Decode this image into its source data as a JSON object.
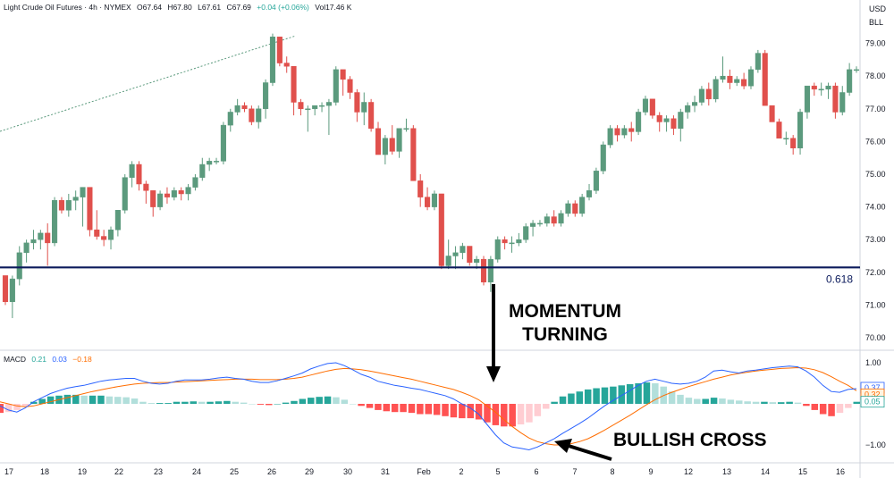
{
  "header": {
    "symbol": "Light Crude Oil Futures · 4h · NYMEX",
    "open": "O67.64",
    "high": "H67.80",
    "low": "L67.61",
    "close": "C67.69",
    "change": "+0.04 (+0.06%)",
    "volume": "Vol17.46 K"
  },
  "price_axis": {
    "currency": "USD",
    "unit": "BLL"
  },
  "macd_header": {
    "name": "MACD",
    "v1": "0.21",
    "v2": "0.03",
    "v3": "−0.18"
  },
  "annotations": {
    "momentum_line1": "MOMENTUM",
    "momentum_line2": "TURNING",
    "bullish": "BULLISH CROSS"
  },
  "fib_label": "0.618",
  "colors": {
    "up": "#26a69a",
    "up_candle": "#5b9a7d",
    "down_candle": "#e0504c",
    "macd_line": "#2962ff",
    "signal_line": "#ff6d00",
    "hist_up_strong": "#26a69a",
    "hist_up_weak": "#b2dfdb",
    "hist_down_strong": "#ff5252",
    "hist_down_weak": "#ffcdd2",
    "support_line": "#0c1b5c"
  },
  "chart_data": [
    {
      "type": "candlestick",
      "title": "",
      "y_ticks": [
        "79.00",
        "78.00",
        "77.00",
        "76.00",
        "75.00",
        "74.00",
        "73.00",
        "72.00",
        "71.00",
        "70.00"
      ],
      "x_ticks": [
        "17",
        "18",
        "19",
        "22",
        "23",
        "24",
        "25",
        "26",
        "29",
        "30",
        "31",
        "Feb",
        "2",
        "5",
        "6",
        "7",
        "8",
        "9",
        "12",
        "13",
        "14",
        "15",
        "16"
      ],
      "ylim": [
        69.6,
        79.6
      ],
      "horizontal_line": {
        "value": 72.15,
        "label": "0.618"
      },
      "candles": [
        [
          71.9,
          71.9,
          71.0,
          71.1
        ],
        [
          71.1,
          71.9,
          70.6,
          71.8
        ],
        [
          71.8,
          72.8,
          71.6,
          72.6
        ],
        [
          72.6,
          73.0,
          72.3,
          72.9
        ],
        [
          72.9,
          73.3,
          72.7,
          73.0
        ],
        [
          73.0,
          73.3,
          72.7,
          73.2
        ],
        [
          73.2,
          73.5,
          72.2,
          72.9
        ],
        [
          72.9,
          74.3,
          72.8,
          74.2
        ],
        [
          74.2,
          74.3,
          73.8,
          73.9
        ],
        [
          73.9,
          74.4,
          73.7,
          74.2
        ],
        [
          74.2,
          74.5,
          73.9,
          74.3
        ],
        [
          74.3,
          74.6,
          73.4,
          74.6
        ],
        [
          74.6,
          74.6,
          73.1,
          73.3
        ],
        [
          73.3,
          73.9,
          73.0,
          73.1
        ],
        [
          73.1,
          73.3,
          72.8,
          73.0
        ],
        [
          73.0,
          73.4,
          72.7,
          73.3
        ],
        [
          73.3,
          73.9,
          73.1,
          73.9
        ],
        [
          73.9,
          75.0,
          73.8,
          74.9
        ],
        [
          74.9,
          75.4,
          74.6,
          75.3
        ],
        [
          75.3,
          75.4,
          74.5,
          74.7
        ],
        [
          74.7,
          74.8,
          74.1,
          74.5
        ],
        [
          74.5,
          74.5,
          73.7,
          74.0
        ],
        [
          74.0,
          74.5,
          73.9,
          74.4
        ],
        [
          74.4,
          74.6,
          74.1,
          74.3
        ],
        [
          74.3,
          74.6,
          74.2,
          74.5
        ],
        [
          74.5,
          74.6,
          74.2,
          74.4
        ],
        [
          74.4,
          74.7,
          74.2,
          74.6
        ],
        [
          74.6,
          75.0,
          74.5,
          74.9
        ],
        [
          74.9,
          75.5,
          74.8,
          75.3
        ],
        [
          75.3,
          75.5,
          75.1,
          75.4
        ],
        [
          75.4,
          75.5,
          75.3,
          75.4
        ],
        [
          75.4,
          76.6,
          75.3,
          76.5
        ],
        [
          76.5,
          77.0,
          76.3,
          76.9
        ],
        [
          76.9,
          77.3,
          76.8,
          77.1
        ],
        [
          77.1,
          77.2,
          76.9,
          77.0
        ],
        [
          77.0,
          77.1,
          76.5,
          76.6
        ],
        [
          76.6,
          77.1,
          76.4,
          77.0
        ],
        [
          77.0,
          77.9,
          76.7,
          77.8
        ],
        [
          77.8,
          79.3,
          77.7,
          79.2
        ],
        [
          79.2,
          79.2,
          78.3,
          78.4
        ],
        [
          78.4,
          78.6,
          78.1,
          78.3
        ],
        [
          78.3,
          78.3,
          76.8,
          77.2
        ],
        [
          77.2,
          77.3,
          76.8,
          77.0
        ],
        [
          77.0,
          77.1,
          76.3,
          77.0
        ],
        [
          77.0,
          77.1,
          76.8,
          77.1
        ],
        [
          77.1,
          77.2,
          76.9,
          77.1
        ],
        [
          77.1,
          77.3,
          76.2,
          77.2
        ],
        [
          77.2,
          78.3,
          77.1,
          78.2
        ],
        [
          78.2,
          78.2,
          77.4,
          77.9
        ],
        [
          77.9,
          78.0,
          77.3,
          77.5
        ],
        [
          77.5,
          77.6,
          76.6,
          76.9
        ],
        [
          76.9,
          77.5,
          76.5,
          77.2
        ],
        [
          77.2,
          77.3,
          76.3,
          76.4
        ],
        [
          76.4,
          76.6,
          75.6,
          75.6
        ],
        [
          75.6,
          76.2,
          75.3,
          76.1
        ],
        [
          76.1,
          76.5,
          75.6,
          75.7
        ],
        [
          75.7,
          76.4,
          75.5,
          76.4
        ],
        [
          76.4,
          76.7,
          76.3,
          76.4
        ],
        [
          76.4,
          76.5,
          74.8,
          74.8
        ],
        [
          74.8,
          75.0,
          74.0,
          74.3
        ],
        [
          74.3,
          74.6,
          73.9,
          74.0
        ],
        [
          74.0,
          74.5,
          73.9,
          74.4
        ],
        [
          74.4,
          74.4,
          72.1,
          72.2
        ],
        [
          72.2,
          73.0,
          72.1,
          72.5
        ],
        [
          72.5,
          72.8,
          72.1,
          72.6
        ],
        [
          72.6,
          72.9,
          72.4,
          72.8
        ],
        [
          72.8,
          72.8,
          72.2,
          72.3
        ],
        [
          72.3,
          72.5,
          72.1,
          72.4
        ],
        [
          72.4,
          72.5,
          71.6,
          71.7
        ],
        [
          71.7,
          72.5,
          71.4,
          72.4
        ],
        [
          72.4,
          73.1,
          72.3,
          73.0
        ],
        [
          73.0,
          73.1,
          72.7,
          72.9
        ],
        [
          72.9,
          73.1,
          72.6,
          72.9
        ],
        [
          72.9,
          73.2,
          72.8,
          73.0
        ],
        [
          73.0,
          73.5,
          72.9,
          73.4
        ],
        [
          73.4,
          73.6,
          73.1,
          73.5
        ],
        [
          73.5,
          73.6,
          73.4,
          73.5
        ],
        [
          73.5,
          73.8,
          73.4,
          73.7
        ],
        [
          73.7,
          73.9,
          73.4,
          73.5
        ],
        [
          73.5,
          73.9,
          73.4,
          73.8
        ],
        [
          73.8,
          74.2,
          73.7,
          74.1
        ],
        [
          74.1,
          74.2,
          73.7,
          73.8
        ],
        [
          73.8,
          74.4,
          73.7,
          74.3
        ],
        [
          74.3,
          74.7,
          74.2,
          74.5
        ],
        [
          74.5,
          75.2,
          74.4,
          75.1
        ],
        [
          75.1,
          76.0,
          75.0,
          75.9
        ],
        [
          75.9,
          76.5,
          75.8,
          76.4
        ],
        [
          76.4,
          76.5,
          76.0,
          76.2
        ],
        [
          76.2,
          76.5,
          76.1,
          76.4
        ],
        [
          76.4,
          76.6,
          76.0,
          76.3
        ],
        [
          76.3,
          77.0,
          76.2,
          76.9
        ],
        [
          76.9,
          77.4,
          76.8,
          77.3
        ],
        [
          77.3,
          77.3,
          76.7,
          76.8
        ],
        [
          76.8,
          76.9,
          76.3,
          76.6
        ],
        [
          76.6,
          76.8,
          76.3,
          76.7
        ],
        [
          76.7,
          76.8,
          76.2,
          76.4
        ],
        [
          76.4,
          77.0,
          76.0,
          76.9
        ],
        [
          76.9,
          77.2,
          76.7,
          77.1
        ],
        [
          77.1,
          77.4,
          76.9,
          77.2
        ],
        [
          77.2,
          77.7,
          77.1,
          77.6
        ],
        [
          77.6,
          77.8,
          77.1,
          77.3
        ],
        [
          77.3,
          78.0,
          77.2,
          77.9
        ],
        [
          77.9,
          78.6,
          77.8,
          78.0
        ],
        [
          78.0,
          78.2,
          77.6,
          77.8
        ],
        [
          77.8,
          78.0,
          77.7,
          77.9
        ],
        [
          77.9,
          78.1,
          77.6,
          77.7
        ],
        [
          77.7,
          78.3,
          77.6,
          78.2
        ],
        [
          78.2,
          78.8,
          78.1,
          78.7
        ],
        [
          78.7,
          78.8,
          77.1,
          77.1
        ],
        [
          77.1,
          77.1,
          76.6,
          76.6
        ],
        [
          76.6,
          76.7,
          76.1,
          76.1
        ],
        [
          76.1,
          76.3,
          75.9,
          76.1
        ],
        [
          76.1,
          76.2,
          75.6,
          75.8
        ],
        [
          75.8,
          77.0,
          75.6,
          76.9
        ],
        [
          76.9,
          77.7,
          76.7,
          77.7
        ],
        [
          77.7,
          77.8,
          77.4,
          77.6
        ],
        [
          77.6,
          77.8,
          77.4,
          77.6
        ],
        [
          77.6,
          77.8,
          77.3,
          77.7
        ],
        [
          77.7,
          77.8,
          76.7,
          76.9
        ],
        [
          76.9,
          77.7,
          76.8,
          77.5
        ],
        [
          77.5,
          78.4,
          77.4,
          78.2
        ],
        [
          78.2,
          78.3,
          78.1,
          78.2
        ]
      ]
    },
    {
      "type": "macd",
      "title": "",
      "y_ticks": [
        "1.00",
        "0.00",
        "−1.00"
      ],
      "ylim": [
        -1.45,
        1.5
      ],
      "value_tags": [
        "0.37",
        "0.32",
        "0.05"
      ],
      "macd": [
        -0.05,
        -0.15,
        -0.2,
        -0.1,
        0.05,
        0.15,
        0.25,
        0.32,
        0.38,
        0.42,
        0.45,
        0.5,
        0.55,
        0.58,
        0.6,
        0.62,
        0.62,
        0.55,
        0.5,
        0.48,
        0.5,
        0.55,
        0.58,
        0.58,
        0.58,
        0.6,
        0.63,
        0.65,
        0.62,
        0.6,
        0.55,
        0.52,
        0.52,
        0.56,
        0.62,
        0.68,
        0.75,
        0.85,
        0.92,
        0.98,
        1.0,
        0.93,
        0.83,
        0.72,
        0.65,
        0.55,
        0.5,
        0.45,
        0.42,
        0.38,
        0.35,
        0.3,
        0.25,
        0.2,
        0.12,
        0.0,
        -0.1,
        -0.25,
        -0.5,
        -0.75,
        -0.95,
        -1.05,
        -1.08,
        -1.12,
        -1.05,
        -0.95,
        -0.85,
        -0.72,
        -0.6,
        -0.48,
        -0.35,
        -0.2,
        -0.05,
        0.08,
        0.2,
        0.32,
        0.45,
        0.55,
        0.6,
        0.55,
        0.5,
        0.48,
        0.5,
        0.55,
        0.65,
        0.8,
        0.82,
        0.78,
        0.75,
        0.8,
        0.82,
        0.85,
        0.88,
        0.9,
        0.92,
        0.9,
        0.8,
        0.65,
        0.45,
        0.3,
        0.28,
        0.35,
        0.37
      ],
      "signal": [
        0.05,
        0.0,
        -0.05,
        -0.07,
        -0.05,
        0.0,
        0.05,
        0.1,
        0.15,
        0.2,
        0.25,
        0.3,
        0.34,
        0.38,
        0.42,
        0.45,
        0.48,
        0.5,
        0.51,
        0.52,
        0.52,
        0.53,
        0.54,
        0.55,
        0.56,
        0.57,
        0.58,
        0.59,
        0.6,
        0.6,
        0.6,
        0.59,
        0.59,
        0.59,
        0.6,
        0.62,
        0.65,
        0.7,
        0.75,
        0.8,
        0.84,
        0.86,
        0.85,
        0.83,
        0.8,
        0.76,
        0.72,
        0.68,
        0.64,
        0.6,
        0.55,
        0.5,
        0.45,
        0.4,
        0.35,
        0.28,
        0.2,
        0.1,
        -0.05,
        -0.2,
        -0.38,
        -0.55,
        -0.7,
        -0.83,
        -0.92,
        -0.97,
        -1.0,
        -1.0,
        -0.97,
        -0.92,
        -0.85,
        -0.75,
        -0.64,
        -0.52,
        -0.4,
        -0.28,
        -0.15,
        -0.02,
        0.1,
        0.2,
        0.28,
        0.35,
        0.42,
        0.48,
        0.54,
        0.6,
        0.65,
        0.7,
        0.74,
        0.77,
        0.8,
        0.82,
        0.84,
        0.86,
        0.87,
        0.88,
        0.87,
        0.83,
        0.76,
        0.66,
        0.55,
        0.45,
        0.32
      ],
      "histogram": [
        -0.22,
        -0.2,
        -0.15,
        -0.05,
        0.05,
        0.12,
        0.18,
        0.2,
        0.22,
        0.22,
        0.2,
        0.2,
        0.2,
        0.18,
        0.17,
        0.16,
        0.13,
        0.05,
        0.02,
        0.02,
        0.02,
        0.05,
        0.05,
        0.06,
        0.05,
        0.05,
        0.06,
        0.07,
        0.05,
        0.03,
        0.0,
        -0.02,
        -0.03,
        0.0,
        0.03,
        0.07,
        0.12,
        0.15,
        0.17,
        0.18,
        0.16,
        0.1,
        0.0,
        -0.05,
        -0.1,
        -0.15,
        -0.18,
        -0.2,
        -0.2,
        -0.22,
        -0.25,
        -0.25,
        -0.27,
        -0.3,
        -0.33,
        -0.35,
        -0.35,
        -0.38,
        -0.45,
        -0.52,
        -0.55,
        -0.55,
        -0.5,
        -0.45,
        -0.3,
        -0.12,
        0.05,
        0.18,
        0.25,
        0.3,
        0.35,
        0.38,
        0.4,
        0.42,
        0.45,
        0.48,
        0.5,
        0.52,
        0.5,
        0.42,
        0.3,
        0.22,
        0.15,
        0.12,
        0.12,
        0.15,
        0.13,
        0.1,
        0.08,
        0.06,
        0.05,
        0.05,
        0.04,
        0.04,
        0.05,
        0.03,
        -0.05,
        -0.15,
        -0.25,
        -0.3,
        -0.22,
        -0.1,
        0.05
      ]
    }
  ]
}
